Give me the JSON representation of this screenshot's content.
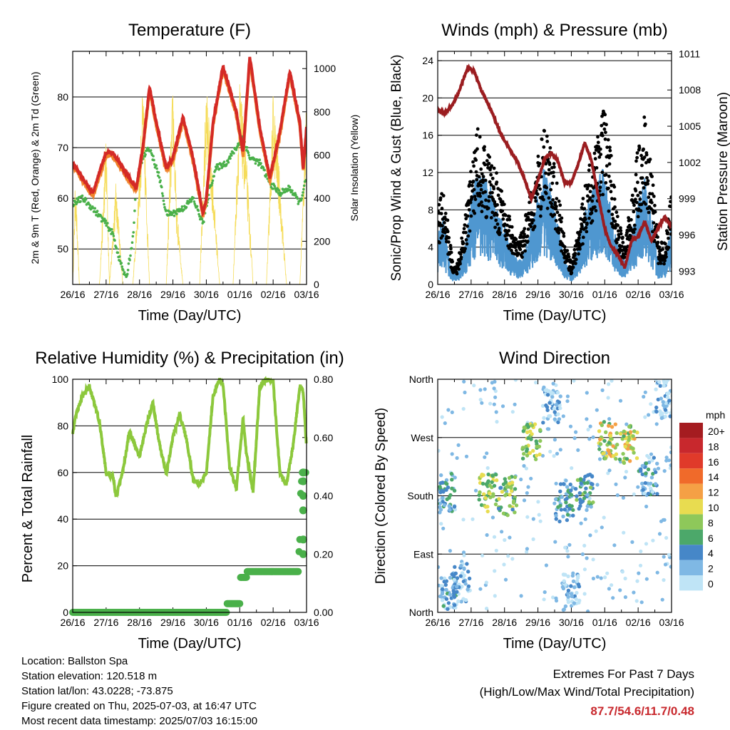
{
  "footer": {
    "location": "Location: Ballston Spa",
    "elevation": "Station elevation: 120.518 m",
    "latlon": "Station lat/lon: 43.0228; -73.875",
    "created": "Figure created on Thu, 2025-07-03, at 16:47 UTC",
    "recent": "Most recent data timestamp: 2025/07/03 16:15:00"
  },
  "extremes": {
    "title": "Extremes For Past 7 Days",
    "subtitle": "(High/Low/Max Wind/Total Precipitation)",
    "values": "87.7/54.6/11.7/0.48",
    "color": "#c8282d"
  },
  "chart_data": [
    {
      "type": "line",
      "title": "Temperature (F)",
      "xlabel": "Time (Day/UTC)",
      "ylabel": "2m & 9m T (Red, Orange) & 2m Td (Green)",
      "ylabel_right": "Solar Insolation (Yellow)",
      "x_ticks": [
        "26/16",
        "27/16",
        "28/16",
        "29/16",
        "30/16",
        "01/16",
        "02/16",
        "03/16"
      ],
      "ylim": [
        43,
        89
      ],
      "yticks": [
        50,
        60,
        70,
        80
      ],
      "ylim_right": [
        0,
        1080
      ],
      "yticks_right": [
        0,
        200,
        400,
        600,
        800,
        1000
      ],
      "grid": "horizontal",
      "series": [
        {
          "name": "2m T",
          "color": "#d42a26",
          "x": [
            0,
            0.3,
            0.6,
            1.0,
            1.2,
            1.5,
            1.9,
            2.1,
            2.3,
            2.5,
            2.8,
            3.0,
            3.3,
            3.6,
            3.9,
            4.0,
            4.2,
            4.5,
            4.9,
            5.1,
            5.3,
            5.6,
            5.9,
            6.2,
            6.5,
            6.8,
            6.9,
            7.0
          ],
          "y": [
            67,
            64,
            61,
            69,
            69,
            66,
            62,
            70,
            82,
            75,
            66,
            68,
            76,
            68,
            57,
            60,
            75,
            86,
            77,
            69,
            88,
            74,
            64,
            73,
            85,
            75,
            66,
            74
          ]
        },
        {
          "name": "2m Td",
          "color": "#4ab04a",
          "x": [
            0,
            0.3,
            0.6,
            1.0,
            1.2,
            1.4,
            1.6,
            1.8,
            1.9,
            2.1,
            2.3,
            2.6,
            2.8,
            3.0,
            3.3,
            3.6,
            3.9,
            4.1,
            4.3,
            4.6,
            4.9,
            5.1,
            5.3,
            5.6,
            5.9,
            6.2,
            6.5,
            6.8,
            7.0
          ],
          "y": [
            59,
            60,
            58,
            55,
            53,
            48,
            44,
            52,
            62,
            68,
            70,
            64,
            57,
            57,
            58,
            60,
            55,
            62,
            66,
            67,
            70,
            72,
            68,
            67,
            63,
            61,
            62,
            59,
            64
          ]
        },
        {
          "name": "Solar Insolation",
          "color": "#f5dc5a",
          "axis": "right",
          "x": [
            0,
            0.08,
            0.2,
            0.3,
            0.4,
            0.6,
            0.8,
            1.0,
            1.1,
            1.3,
            1.5,
            1.7,
            1.8,
            2.0,
            2.1,
            2.3,
            2.6,
            2.8,
            3.0,
            3.1,
            3.3,
            3.6,
            3.8,
            4.0,
            4.2,
            4.4,
            4.6,
            4.8,
            5.0,
            5.2,
            5.4,
            5.6,
            5.8,
            6.0,
            6.2,
            6.4,
            6.6,
            6.8,
            6.9,
            7.0
          ],
          "y": [
            0,
            500,
            0,
            0,
            0,
            0,
            0,
            700,
            0,
            500,
            0,
            0,
            0,
            550,
            950,
            0,
            0,
            0,
            980,
            400,
            0,
            0,
            0,
            950,
            500,
            0,
            0,
            0,
            950,
            600,
            0,
            0,
            0,
            900,
            500,
            0,
            0,
            0,
            450,
            950
          ]
        }
      ]
    },
    {
      "type": "scatter",
      "title": "Winds (mph) & Pressure (mb)",
      "xlabel": "Time (Day/UTC)",
      "ylabel": "Sonic/Prop Wind & Gust (Blue, Black)",
      "ylabel_right": "Station Pressure (Maroon)",
      "x_ticks": [
        "26/16",
        "27/16",
        "28/16",
        "29/16",
        "30/16",
        "01/16",
        "02/16",
        "03/16"
      ],
      "ylim": [
        0,
        25
      ],
      "yticks": [
        0,
        4,
        8,
        12,
        16,
        20,
        24
      ],
      "ylim_right": [
        991.9,
        1011.2
      ],
      "yticks_right": [
        993,
        996,
        999,
        1002,
        1005,
        1008,
        1011
      ],
      "grid": "horizontal",
      "series": [
        {
          "name": "Sonic/Prop Wind",
          "color": "#4f97d0",
          "x": [
            0,
            0.15,
            0.3,
            0.45,
            0.6,
            0.8,
            1.0,
            1.2,
            1.4,
            1.6,
            1.8,
            2.0,
            2.2,
            2.4,
            2.6,
            2.8,
            3.0,
            3.2,
            3.4,
            3.6,
            3.8,
            4.0,
            4.2,
            4.4,
            4.6,
            4.8,
            5.0,
            5.2,
            5.4,
            5.6,
            5.8,
            6.0,
            6.2,
            6.4,
            6.6,
            6.8,
            7.0
          ],
          "y": [
            4,
            6,
            3,
            1,
            1,
            3,
            7,
            10,
            9,
            8,
            6,
            5,
            3,
            2,
            3,
            5,
            8,
            10,
            8,
            5,
            2,
            1,
            3,
            6,
            8,
            9,
            10,
            6,
            3,
            2,
            4,
            7,
            9,
            6,
            2,
            2,
            5
          ]
        },
        {
          "name": "Gust",
          "color": "#000000",
          "x": [
            0,
            0.15,
            0.3,
            0.45,
            0.6,
            0.8,
            1.0,
            1.2,
            1.4,
            1.6,
            1.8,
            2.0,
            2.2,
            2.4,
            2.6,
            2.8,
            3.0,
            3.2,
            3.4,
            3.6,
            3.8,
            4.0,
            4.2,
            4.4,
            4.6,
            4.8,
            5.0,
            5.2,
            5.4,
            5.6,
            5.8,
            6.0,
            6.2,
            6.4,
            6.6,
            6.8,
            7.0
          ],
          "y": [
            7,
            9,
            6,
            2,
            2,
            6,
            11,
            15,
            13,
            12,
            10,
            8,
            6,
            4,
            6,
            9,
            12,
            15,
            13,
            9,
            4,
            2,
            5,
            9,
            12,
            14,
            17,
            12,
            6,
            4,
            8,
            13,
            16,
            11,
            4,
            4,
            9
          ]
        },
        {
          "name": "Station Pressure",
          "color": "#9b1d20",
          "axis": "right",
          "x": [
            0,
            0.2,
            0.4,
            0.6,
            0.9,
            1.1,
            1.3,
            1.6,
            1.9,
            2.2,
            2.4,
            2.6,
            2.8,
            3.0,
            3.2,
            3.4,
            3.6,
            3.8,
            4.0,
            4.2,
            4.4,
            4.6,
            4.8,
            5.0,
            5.2,
            5.4,
            5.6,
            5.8,
            6.0,
            6.2,
            6.4,
            6.6,
            6.8,
            7.0
          ],
          "y": [
            1006.3,
            1006.1,
            1006.6,
            1007.6,
            1009.9,
            1009.5,
            1008.0,
            1006.3,
            1004.3,
            1002.9,
            1002.0,
            1000.6,
            999.0,
            1000.5,
            1002.3,
            1002.8,
            1002.1,
            1000.3,
            1000.3,
            1001.8,
            1003.6,
            1002.2,
            999.3,
            996.5,
            995.0,
            994.3,
            993.3,
            995.5,
            995.9,
            997.1,
            995.5,
            996.6,
            997.5,
            996.7
          ]
        }
      ]
    },
    {
      "type": "line",
      "title": "Relative Humidity (%) & Precipitation (in)",
      "xlabel": "Time (Day/UTC)",
      "ylabel": "Percent & Total Rainfall",
      "x_ticks": [
        "26/16",
        "27/16",
        "28/16",
        "29/16",
        "30/16",
        "01/16",
        "02/16",
        "03/16"
      ],
      "ylim": [
        0,
        100
      ],
      "yticks": [
        0,
        20,
        40,
        60,
        80,
        100
      ],
      "ylim_right": [
        0,
        0.8
      ],
      "yticks_right": [
        0.0,
        0.2,
        0.4,
        0.6,
        0.8
      ],
      "ytick_labels_right": [
        "0.00",
        "0.20",
        "0.40",
        "0.60",
        "0.80"
      ],
      "grid": "horizontal",
      "series": [
        {
          "name": "Relative Humidity",
          "color": "#8cc83c",
          "x": [
            0,
            0.1,
            0.3,
            0.5,
            0.6,
            0.8,
            1.0,
            1.2,
            1.3,
            1.5,
            1.7,
            1.9,
            2.0,
            2.2,
            2.4,
            2.6,
            2.8,
            3.0,
            3.2,
            3.4,
            3.6,
            3.8,
            4.0,
            4.2,
            4.4,
            4.5,
            4.7,
            4.9,
            5.1,
            5.2,
            5.4,
            5.6,
            5.8,
            6.0,
            6.2,
            6.4,
            6.6,
            6.8,
            6.9,
            7.0
          ],
          "y": [
            77,
            85,
            93,
            97,
            92,
            82,
            60,
            58,
            50,
            60,
            78,
            70,
            67,
            80,
            90,
            72,
            59,
            75,
            85,
            75,
            57,
            55,
            60,
            93,
            100,
            98,
            62,
            53,
            83,
            68,
            52,
            97,
            100,
            99,
            60,
            55,
            72,
            97,
            95,
            70
          ]
        },
        {
          "name": "Total Precipitation",
          "color": "#4ab04a",
          "axis": "right",
          "x": [
            0,
            4.6,
            4.62,
            5.0,
            5.02,
            5.2,
            5.22,
            6.75,
            6.77,
            6.8,
            6.82,
            6.85,
            6.87,
            7.0
          ],
          "y": [
            0,
            0,
            0.03,
            0.03,
            0.12,
            0.12,
            0.14,
            0.14,
            0.2,
            0.25,
            0.4,
            0.45,
            0.48,
            0.48
          ]
        }
      ]
    },
    {
      "type": "scatter",
      "title": "Wind Direction",
      "xlabel": "Time (Day/UTC)",
      "ylabel": "Direction (Colored By Speed)",
      "x_ticks": [
        "26/16",
        "27/16",
        "28/16",
        "29/16",
        "30/16",
        "01/16",
        "02/16",
        "03/16"
      ],
      "ylim": [
        0,
        360
      ],
      "yticks": [
        0,
        90,
        180,
        270,
        360
      ],
      "ytick_labels": [
        "North",
        "East",
        "South",
        "West",
        "North"
      ],
      "grid": "horizontal",
      "colorbar_title": "mph",
      "colorbar_labels": [
        "20+",
        "18",
        "16",
        "14",
        "12",
        "10",
        "8",
        "6",
        "4",
        "2",
        "0"
      ],
      "colorbar_colors": [
        "#a51c20",
        "#c8282d",
        "#e03a2a",
        "#f06a2a",
        "#f5a045",
        "#e8dc50",
        "#8ec85a",
        "#4ca86a",
        "#4687c8",
        "#7fb8e4",
        "#bfe4f6"
      ],
      "clusters": [
        {
          "x": 0.25,
          "dir": 185,
          "spd": 4
        },
        {
          "x": 0.3,
          "dir": 35,
          "spd": 3
        },
        {
          "x": 0.7,
          "dir": 45,
          "spd": 2
        },
        {
          "x": 1.5,
          "dir": 185,
          "spd": 8
        },
        {
          "x": 2.1,
          "dir": 180,
          "spd": 7
        },
        {
          "x": 2.8,
          "dir": 265,
          "spd": 8
        },
        {
          "x": 3.4,
          "dir": 320,
          "spd": 1
        },
        {
          "x": 3.8,
          "dir": 170,
          "spd": 4
        },
        {
          "x": 4.0,
          "dir": 30,
          "spd": 1
        },
        {
          "x": 4.4,
          "dir": 185,
          "spd": 5
        },
        {
          "x": 5.1,
          "dir": 265,
          "spd": 9
        },
        {
          "x": 5.7,
          "dir": 260,
          "spd": 9
        },
        {
          "x": 6.3,
          "dir": 210,
          "spd": 3
        },
        {
          "x": 6.8,
          "dir": 330,
          "spd": 1
        }
      ]
    }
  ]
}
